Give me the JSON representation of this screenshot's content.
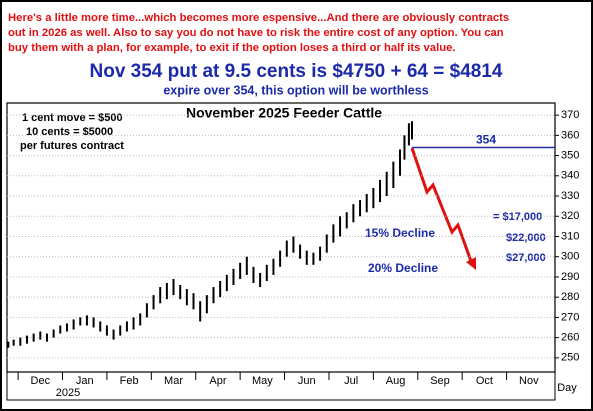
{
  "header": {
    "note_lines": [
      "Here's a little more time...which becomes more espensive...And there are obviously contracts",
      "out in 2026 as well. Also to say you do not have to risk the entire cost of any option. You can",
      "buy them with a plan, for example, to exit if the option loses a third or half its value."
    ],
    "headline": "Nov 354 put at 9.5 cents is $4750 + 64 = $4814",
    "subline": "expire over 354, this option will be worthless"
  },
  "chart_data": {
    "type": "range-bar",
    "title": "November 2025 Feeder Cattle",
    "notes": [
      "1 cent move = $500",
      "10 cents = $5000",
      "per futures contract"
    ],
    "color": "#000000",
    "x": [
      -0.22,
      -0.1,
      0.05,
      0.2,
      0.35,
      0.5,
      0.65,
      0.8,
      0.95,
      1.1,
      1.25,
      1.4,
      1.55,
      1.7,
      1.85,
      2.0,
      2.15,
      2.3,
      2.45,
      2.6,
      2.75,
      2.9,
      3.05,
      3.2,
      3.35,
      3.5,
      3.65,
      3.8,
      3.95,
      4.1,
      4.25,
      4.4,
      4.55,
      4.7,
      4.85,
      5.0,
      5.15,
      5.3,
      5.45,
      5.6,
      5.75,
      5.9,
      6.05,
      6.2,
      6.35,
      6.5,
      6.65,
      6.8,
      6.95,
      7.1,
      7.25,
      7.4,
      7.55,
      7.7,
      7.85,
      8.0,
      8.15,
      8.3,
      8.45,
      8.6,
      8.7,
      8.8,
      8.87
    ],
    "low": [
      255,
      256,
      256,
      257,
      258,
      259,
      258,
      260,
      262,
      263,
      264,
      266,
      266,
      265,
      263,
      261,
      259,
      261,
      263,
      264,
      266,
      270,
      274,
      277,
      279,
      281,
      279,
      276,
      274,
      268,
      272,
      277,
      280,
      283,
      286,
      289,
      291,
      287,
      285,
      288,
      291,
      295,
      300,
      302,
      299,
      296,
      296,
      298,
      302,
      307,
      310,
      314,
      317,
      320,
      322,
      324,
      327,
      330,
      334,
      340,
      348,
      355,
      358
    ],
    "high": [
      258,
      259,
      260,
      261,
      262,
      263,
      262,
      264,
      266,
      267,
      269,
      270,
      271,
      270,
      268,
      266,
      264,
      266,
      268,
      270,
      272,
      277,
      281,
      285,
      287,
      289,
      286,
      284,
      282,
      278,
      281,
      285,
      288,
      291,
      294,
      297,
      300,
      295,
      292,
      296,
      299,
      303,
      308,
      310,
      306,
      303,
      302,
      305,
      311,
      316,
      320,
      322,
      326,
      328,
      331,
      334,
      338,
      342,
      347,
      353,
      360,
      366,
      367
    ],
    "xlim": [
      -0.25,
      12.09
    ],
    "xticks": [
      {
        "value": 0,
        "label": "Dec"
      },
      {
        "value": 1,
        "label": "Jan"
      },
      {
        "value": 2,
        "label": "Feb"
      },
      {
        "value": 3,
        "label": "Mar"
      },
      {
        "value": 4,
        "label": "Apr"
      },
      {
        "value": 5,
        "label": "May"
      },
      {
        "value": 6,
        "label": "Jun"
      },
      {
        "value": 7,
        "label": "Jul"
      },
      {
        "value": 8,
        "label": "Aug"
      },
      {
        "value": 9,
        "label": "Sep"
      },
      {
        "value": 10,
        "label": "Oct"
      },
      {
        "value": 11,
        "label": "Nov"
      }
    ],
    "year_label": "2025",
    "x_axis_label": "Day",
    "ylim": [
      243,
      376
    ],
    "yticks": [
      250,
      260,
      270,
      280,
      290,
      300,
      310,
      320,
      330,
      340,
      350,
      360,
      370
    ],
    "grid": true,
    "strike": {
      "value": 354,
      "label": "354",
      "color": "#1f2f9f"
    },
    "loss_labels": [
      "= $17,000",
      "$22,000",
      "$27,000"
    ],
    "decline_labels": [
      "15% Decline",
      "20% Decline"
    ]
  }
}
